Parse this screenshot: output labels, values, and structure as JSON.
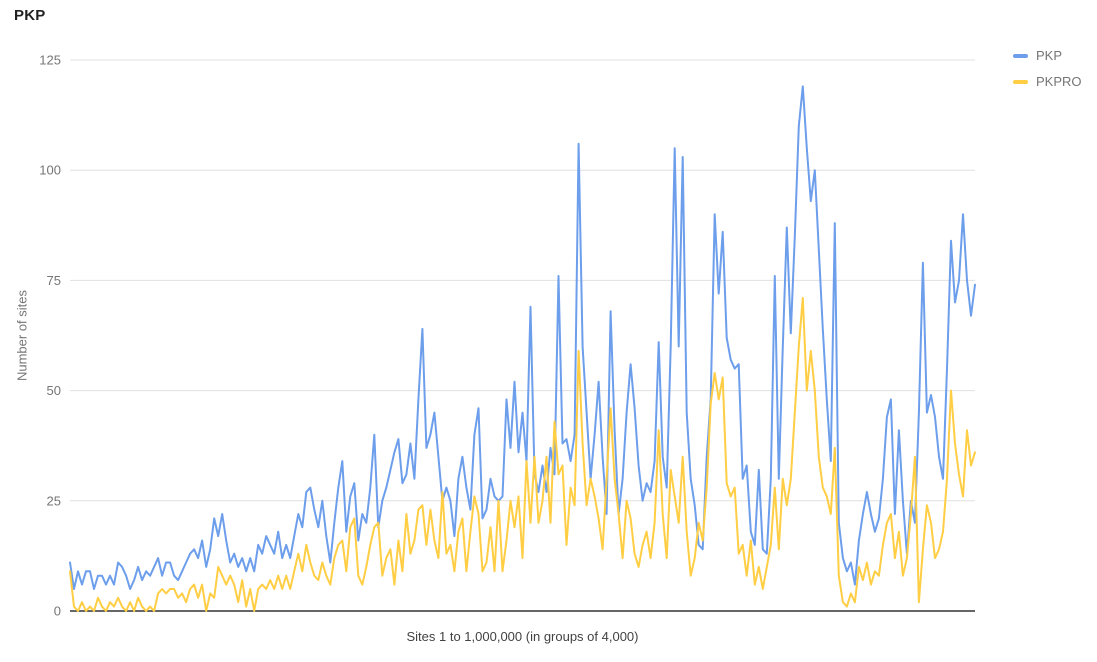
{
  "header": {
    "title": "PKP"
  },
  "colors": {
    "background": "#FFFFFF",
    "gridline": "#E0E0E0",
    "baseline": "#333333",
    "tick_text": "#757575",
    "axis_title_x": "#424242",
    "axis_title_y": "#757575",
    "title_text": "#212121",
    "series_blue": "#6D9EEB",
    "series_yellow": "#FFCE45"
  },
  "chart_data": {
    "type": "line",
    "title": "PKP",
    "xlabel": "Sites 1 to 1,000,000 (in groups of 4,000)",
    "ylabel": "Number of sites",
    "ylim": [
      0,
      125
    ],
    "yticks": [
      0,
      25,
      50,
      75,
      100,
      125
    ],
    "grid": true,
    "legend_position": "top-right",
    "series": [
      {
        "name": "PKP",
        "color": "#6D9EEB",
        "values": [
          11,
          5,
          9,
          6,
          9,
          9,
          5,
          8,
          8,
          6,
          8,
          6,
          11,
          10,
          8,
          5,
          7,
          10,
          7,
          9,
          8,
          10,
          12,
          8,
          11,
          11,
          8,
          7,
          9,
          11,
          13,
          14,
          12,
          16,
          10,
          14,
          21,
          17,
          22,
          16,
          11,
          13,
          10,
          12,
          9,
          12,
          9,
          15,
          13,
          17,
          15,
          13,
          18,
          12,
          15,
          12,
          17,
          22,
          19,
          27,
          28,
          23,
          19,
          25,
          17,
          11,
          20,
          28,
          34,
          18,
          26,
          29,
          16,
          22,
          20,
          28,
          40,
          19,
          25,
          28,
          32,
          36,
          39,
          29,
          31,
          38,
          30,
          48,
          64,
          37,
          40,
          45,
          35,
          25,
          28,
          25,
          17,
          30,
          35,
          28,
          23,
          40,
          46,
          21,
          23,
          30,
          26,
          25,
          26,
          48,
          37,
          52,
          36,
          45,
          34,
          69,
          31,
          27,
          33,
          27,
          37,
          31,
          76,
          38,
          39,
          34,
          40,
          106,
          60,
          45,
          30,
          40,
          52,
          35,
          22,
          68,
          41,
          22,
          30,
          45,
          56,
          46,
          33,
          25,
          29,
          27,
          34,
          61,
          35,
          28,
          60,
          105,
          60,
          103,
          45,
          30,
          24,
          15,
          14,
          35,
          48,
          90,
          72,
          86,
          62,
          57,
          55,
          56,
          30,
          33,
          18,
          15,
          32,
          14,
          13,
          30,
          76,
          30,
          60,
          87,
          63,
          85,
          110,
          119,
          105,
          93,
          100,
          82,
          64,
          48,
          34,
          88,
          20,
          12,
          9,
          11,
          6,
          16,
          22,
          27,
          22,
          18,
          21,
          30,
          44,
          48,
          22,
          41,
          25,
          13,
          25,
          20,
          45,
          79,
          45,
          49,
          44,
          35,
          30,
          55,
          84,
          70,
          75,
          90,
          75,
          67,
          74
        ]
      },
      {
        "name": "PKPRO",
        "color": "#FFCE45",
        "values": [
          9,
          1,
          0,
          2,
          0,
          1,
          0,
          3,
          1,
          0,
          2,
          1,
          3,
          1,
          0,
          2,
          0,
          3,
          1,
          0,
          1,
          0,
          4,
          5,
          4,
          5,
          5,
          3,
          4,
          2,
          5,
          6,
          3,
          6,
          0,
          4,
          3,
          10,
          8,
          6,
          8,
          6,
          2,
          7,
          1,
          5,
          0,
          5,
          6,
          5,
          7,
          5,
          8,
          5,
          8,
          5,
          9,
          13,
          9,
          15,
          11,
          8,
          7,
          11,
          8,
          6,
          12,
          15,
          16,
          9,
          19,
          21,
          8,
          6,
          10,
          15,
          19,
          20,
          8,
          12,
          14,
          6,
          16,
          9,
          22,
          13,
          16,
          23,
          24,
          15,
          23,
          16,
          12,
          27,
          13,
          15,
          9,
          18,
          21,
          9,
          18,
          26,
          22,
          9,
          11,
          19,
          9,
          25,
          9,
          16,
          25,
          19,
          26,
          12,
          34,
          20,
          35,
          20,
          25,
          35,
          20,
          43,
          31,
          33,
          15,
          28,
          24,
          59,
          38,
          24,
          30,
          26,
          21,
          14,
          30,
          46,
          30,
          22,
          12,
          25,
          21,
          13,
          10,
          15,
          18,
          12,
          20,
          41,
          22,
          12,
          32,
          26,
          20,
          35,
          18,
          8,
          12,
          20,
          16,
          28,
          47,
          54,
          48,
          53,
          29,
          26,
          28,
          13,
          15,
          8,
          16,
          6,
          10,
          5,
          10,
          15,
          28,
          14,
          30,
          24,
          30,
          45,
          60,
          71,
          50,
          59,
          50,
          35,
          28,
          26,
          22,
          37,
          8,
          2,
          1,
          4,
          2,
          10,
          7,
          11,
          6,
          9,
          8,
          15,
          20,
          22,
          12,
          18,
          8,
          12,
          22,
          35,
          2,
          14,
          24,
          20,
          12,
          14,
          18,
          30,
          50,
          38,
          31,
          26,
          41,
          33,
          36
        ]
      }
    ]
  }
}
